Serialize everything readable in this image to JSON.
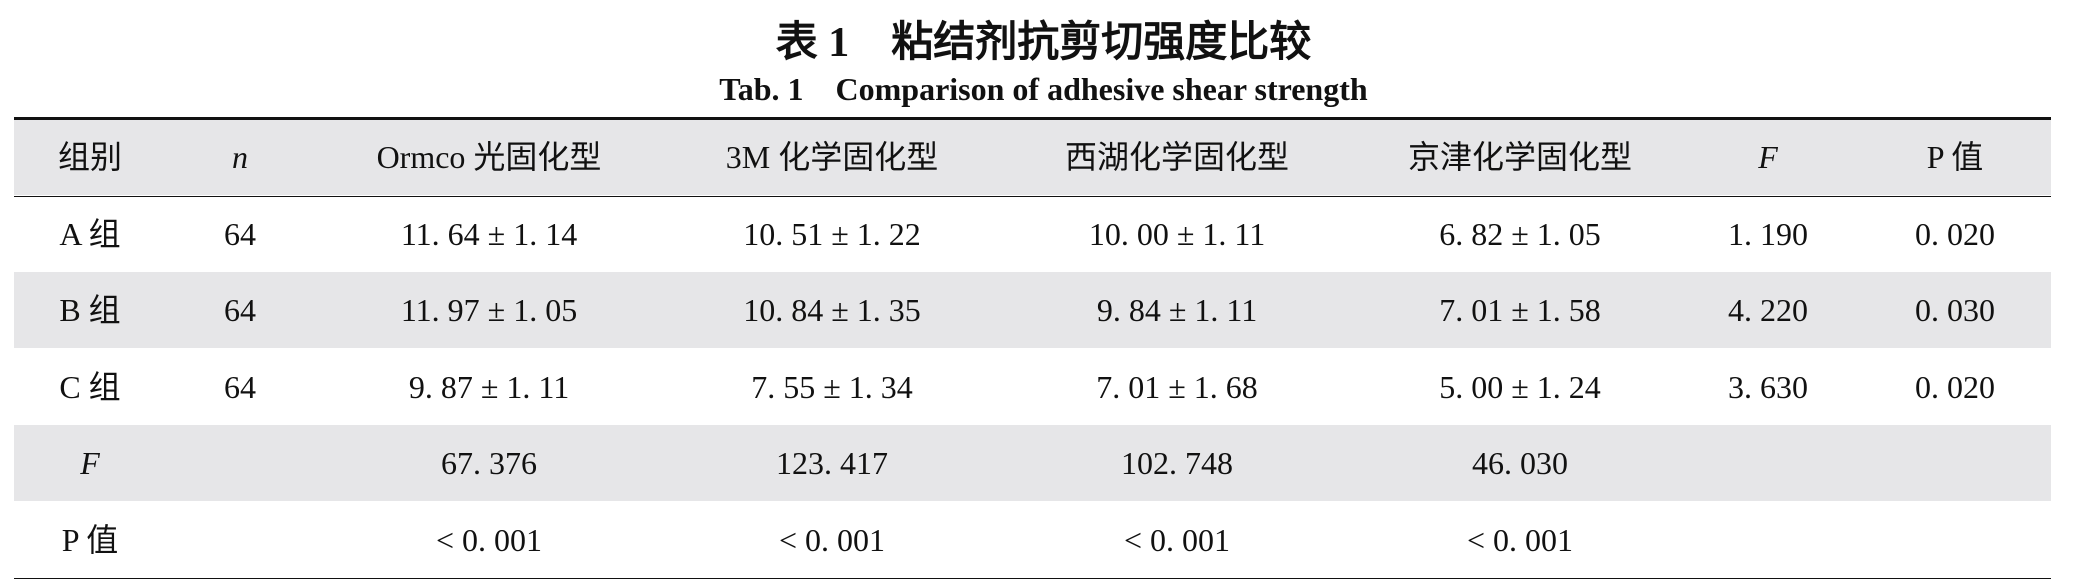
{
  "title": "表 1　粘结剂抗剪切强度比较",
  "subtitle": "Tab. 1　Comparison of adhesive shear strength",
  "table": {
    "header": [
      "组别",
      "n",
      "Ormco 光固化型",
      "3M 化学固化型",
      "西湖化学固化型",
      "京津化学固化型",
      "F",
      "P 值"
    ],
    "rows": [
      [
        "A 组",
        "64",
        "11. 64 ± 1. 14",
        "10. 51 ± 1. 22",
        "10. 00 ± 1. 11",
        "6. 82 ± 1. 05",
        "1. 190",
        "0. 020"
      ],
      [
        "B 组",
        "64",
        "11. 97 ± 1. 05",
        "10. 84 ± 1. 35",
        "9. 84 ± 1. 11",
        "7. 01 ± 1. 58",
        "4. 220",
        "0. 030"
      ],
      [
        "C 组",
        "64",
        "9. 87 ± 1. 11",
        "7. 55 ± 1. 34",
        "7. 01 ± 1. 68",
        "5. 00 ± 1. 24",
        "3. 630",
        "0. 020"
      ],
      [
        "F",
        null,
        "67. 376",
        "123. 417",
        "102. 748",
        "46. 030",
        null,
        null
      ],
      [
        "P 值",
        null,
        "< 0. 001",
        "< 0. 001",
        "< 0. 001",
        "< 0. 001",
        null,
        null
      ]
    ]
  }
}
